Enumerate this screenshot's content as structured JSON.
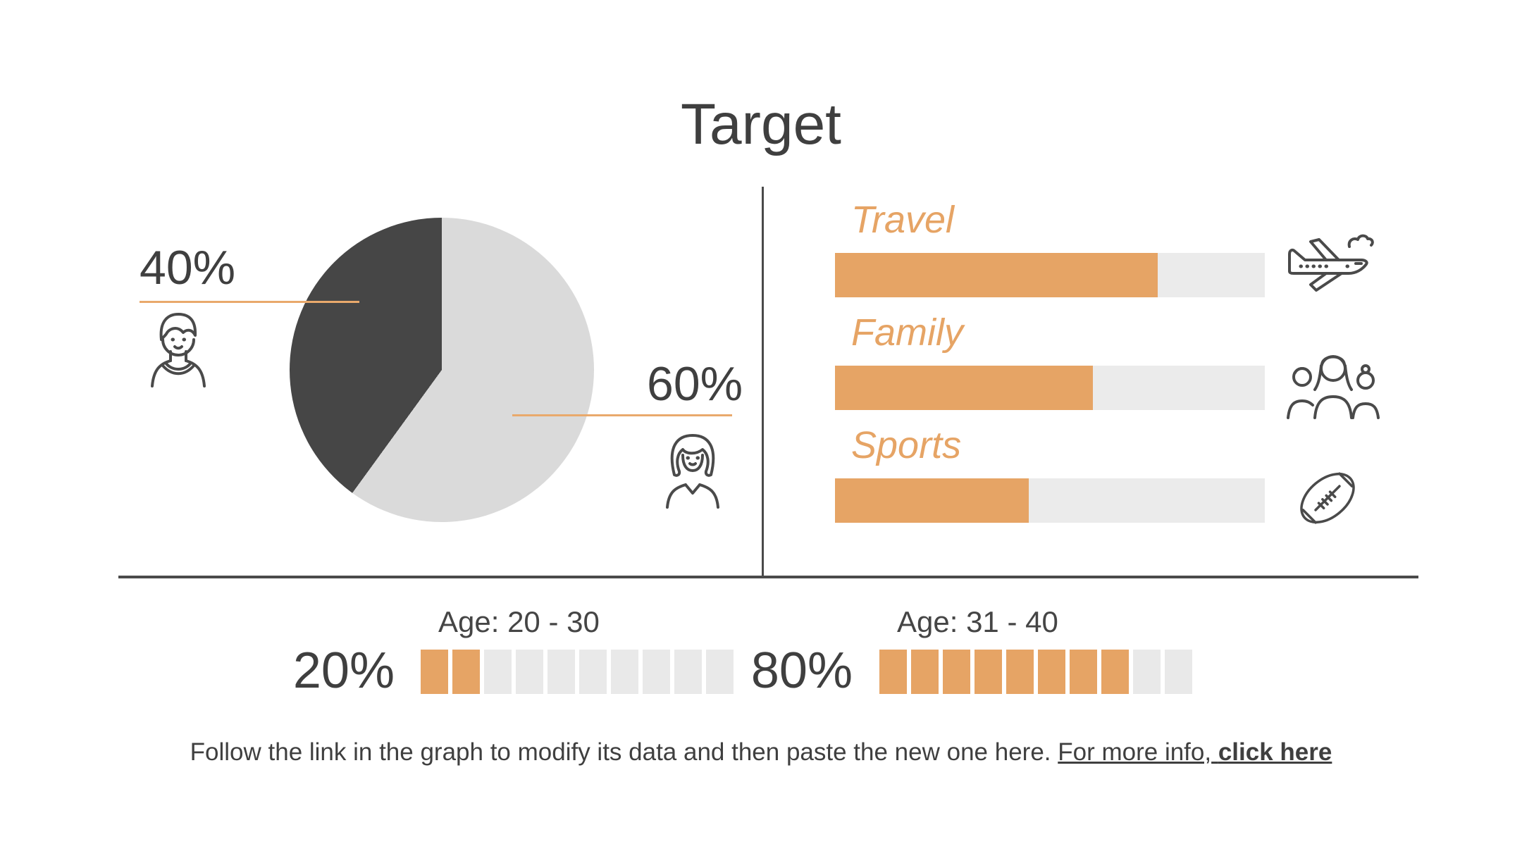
{
  "title": "Target",
  "colors": {
    "orange": "#E6A465",
    "dark_slice": "#464646",
    "pie_light": "#DADADA",
    "bar_track": "#EBEBEB",
    "seg_gray": "#E9E9E9",
    "icon": "#4A4A4A",
    "text": "#3F3F3F",
    "divider": "#4A4A4A",
    "leader_line": "#E9A96C"
  },
  "pie_section": {
    "male_value": "40%",
    "female_value": "60%",
    "male_icon": "man-icon",
    "female_icon": "woman-icon"
  },
  "interests": {
    "items": [
      {
        "label": "Travel",
        "percent": 75,
        "icon": "airplane-icon"
      },
      {
        "label": "Family",
        "percent": 60,
        "icon": "family-icon"
      },
      {
        "label": "Sports",
        "percent": 45,
        "icon": "football-icon"
      }
    ]
  },
  "age_groups": {
    "items": [
      {
        "label": "Age: 20 - 30",
        "value": "20%",
        "segments": 10,
        "filled": 2
      },
      {
        "label": "Age: 31 - 40",
        "value": "80%",
        "segments": 10,
        "filled": 8
      }
    ]
  },
  "footer": {
    "text": "Follow the link in the graph to modify its data and then paste the new one here.",
    "link_prefix": "For more info,",
    "link_text": "click here"
  },
  "chart_data": [
    {
      "type": "pie",
      "labels": [
        "male",
        "female"
      ],
      "values": [
        40,
        60
      ],
      "unit": "%",
      "colors": [
        "#464646",
        "#DADADA"
      ],
      "start_angle_deg": 0,
      "legend_position": "callout-lines"
    },
    {
      "type": "bar",
      "orientation": "horizontal",
      "categories": [
        "Travel",
        "Family",
        "Sports"
      ],
      "values": [
        75,
        60,
        45
      ],
      "unit": "%",
      "xlim": [
        0,
        100
      ],
      "bar_color": "#E6A465",
      "track_color": "#EBEBEB",
      "grid": false
    },
    {
      "type": "bar",
      "orientation": "horizontal",
      "style": "segmented",
      "segments_total": 10,
      "categories": [
        "Age: 20 - 30",
        "Age: 31 - 40"
      ],
      "values": [
        20,
        80
      ],
      "unit": "%",
      "bar_color": "#E6A465",
      "track_color": "#E9E9E9",
      "grid": false
    }
  ]
}
